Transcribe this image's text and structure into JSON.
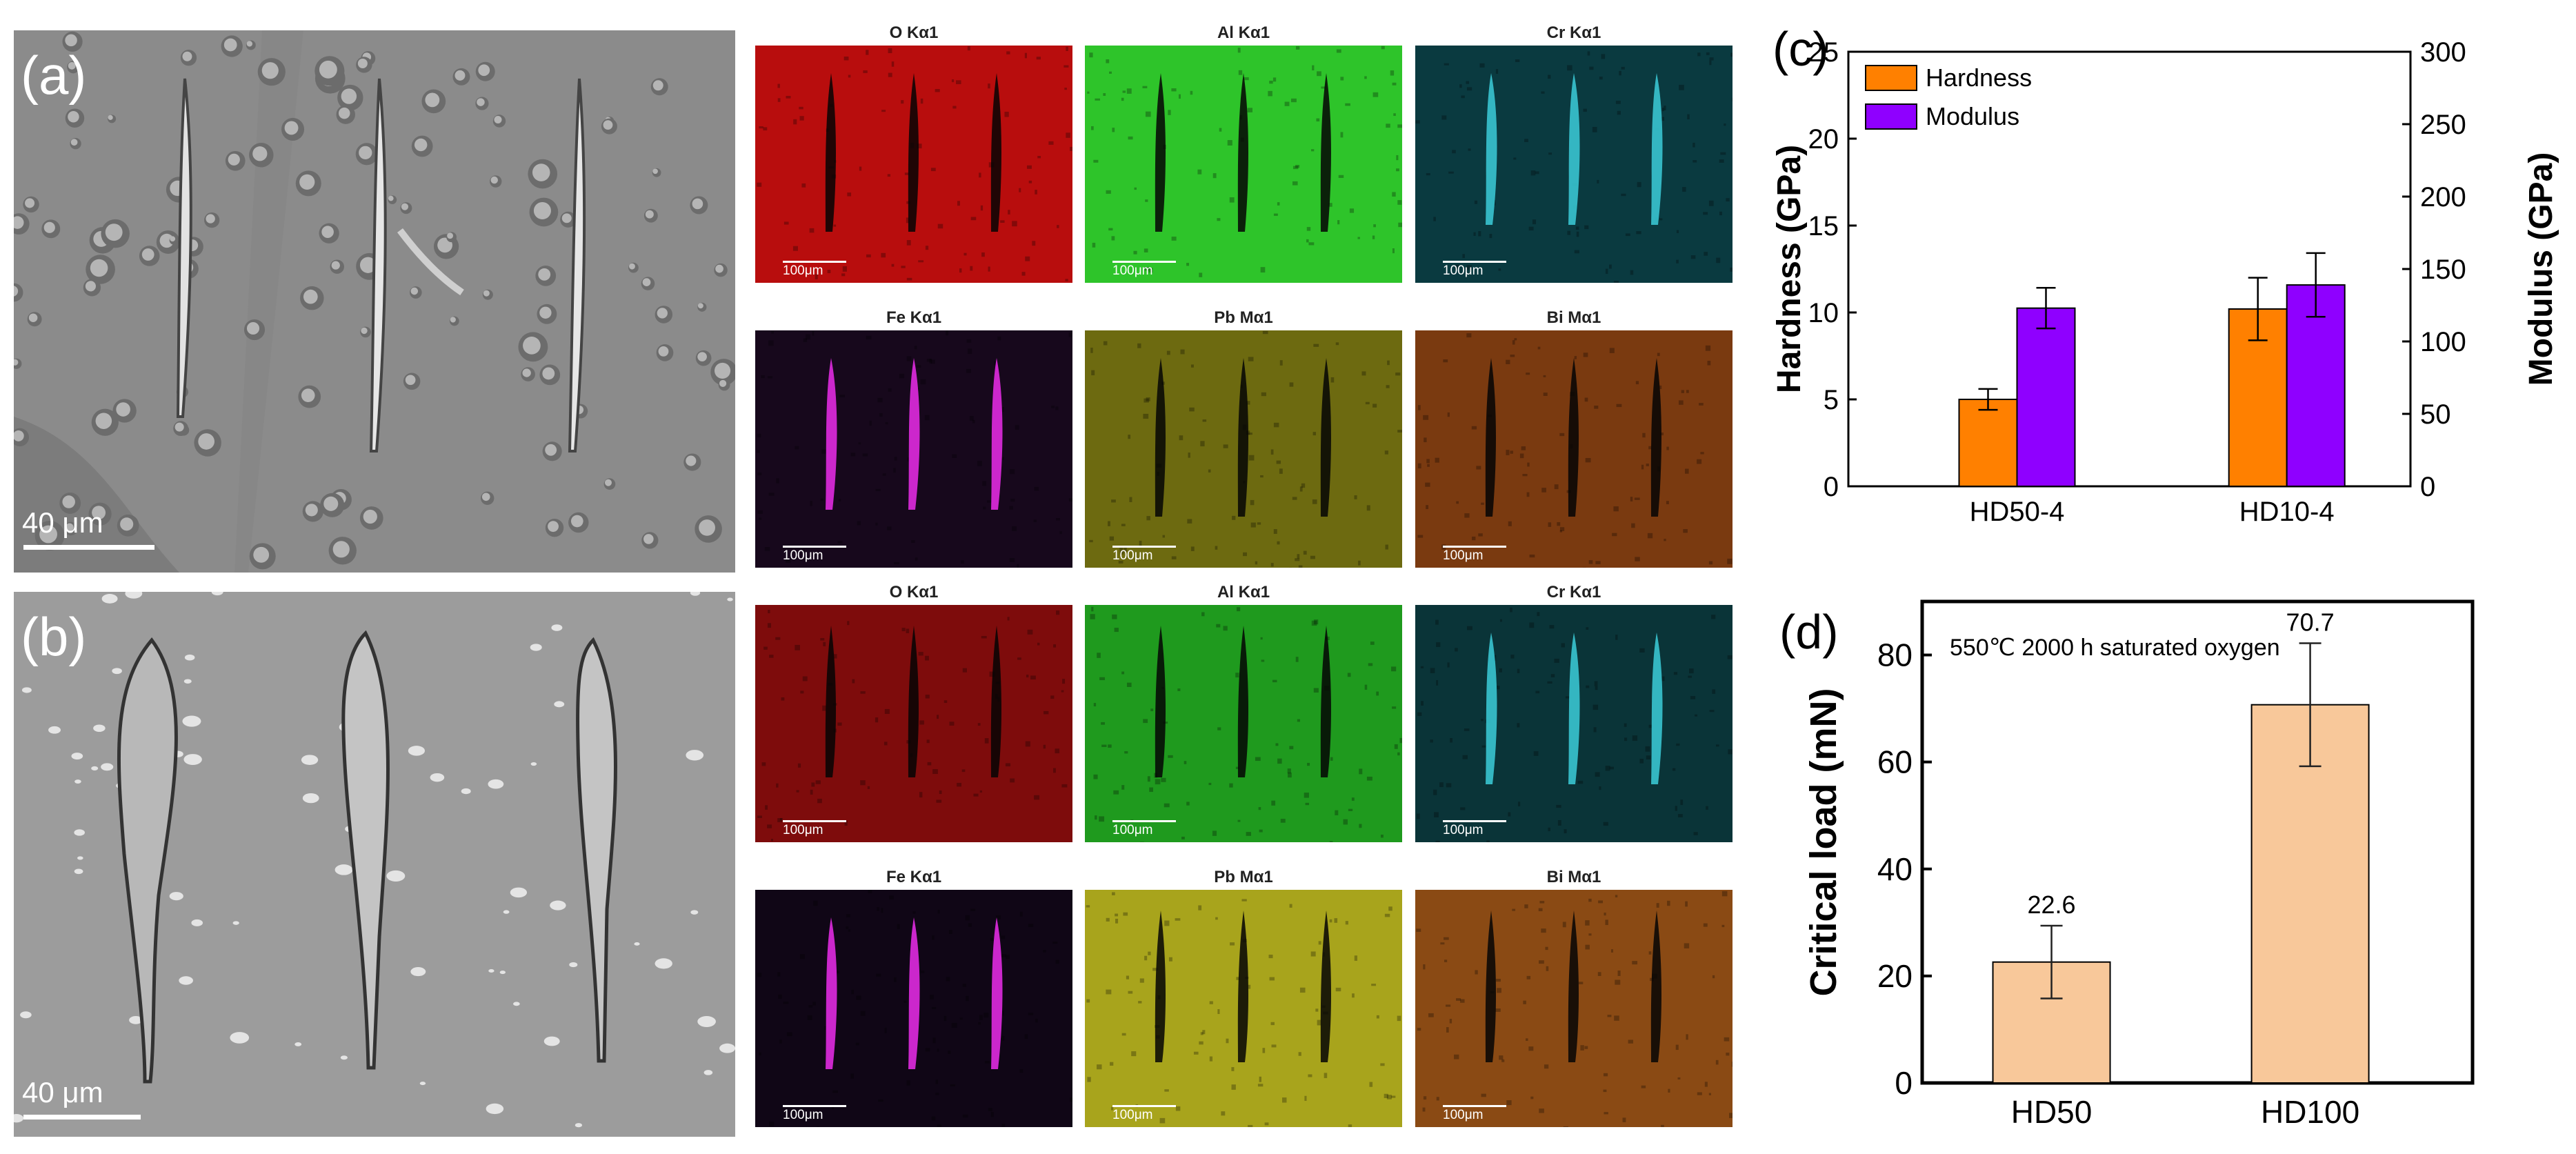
{
  "panel_a": {
    "label": "(a)",
    "scale_bar": "40 μm",
    "maps": [
      {
        "element": "O Kα1",
        "color": "#b80d0d",
        "scale": "100μm"
      },
      {
        "element": "Al Kα1",
        "color": "#2ec42a",
        "scale": "100μm"
      },
      {
        "element": "Cr Kα1",
        "color": "#0a3a40",
        "scale": "100μm"
      },
      {
        "element": "Fe Kα1",
        "color": "#17081c",
        "scale": "100μm"
      },
      {
        "element": "Pb Mα1",
        "color": "#6d6a10",
        "scale": "100μm"
      },
      {
        "element": "Bi Mα1",
        "color": "#7a3a10",
        "scale": "100μm"
      }
    ]
  },
  "panel_b": {
    "label": "(b)",
    "scale_bar": "40 μm",
    "maps": [
      {
        "element": "O Kα1",
        "color": "#7e0c0c",
        "scale": "100μm"
      },
      {
        "element": "Al Kα1",
        "color": "#1f9a1e",
        "scale": "100μm"
      },
      {
        "element": "Cr Kα1",
        "color": "#0a3438",
        "scale": "100μm"
      },
      {
        "element": "Fe Kα1",
        "color": "#100616",
        "scale": "100μm"
      },
      {
        "element": "Pb Mα1",
        "color": "#a8a41c",
        "scale": "100μm"
      },
      {
        "element": "Bi Mα1",
        "color": "#8a4a14",
        "scale": "100μm"
      }
    ]
  },
  "chart_data": [
    {
      "panel": "(c)",
      "type": "bar",
      "categories": [
        "HD50-4",
        "HD10-4"
      ],
      "series": [
        {
          "name": "Hardness",
          "axis": "left",
          "color": "#ff8000",
          "values": [
            5.0,
            10.2
          ],
          "errors": [
            0.6,
            1.8
          ]
        },
        {
          "name": "Modulus",
          "axis": "right",
          "color": "#8f00ff",
          "values": [
            123,
            139
          ],
          "errors": [
            14,
            22
          ]
        }
      ],
      "ylabel": "Hardness (GPa)",
      "y2label": "Modulus (GPa)",
      "ylim": [
        0,
        25
      ],
      "y2lim": [
        0,
        300
      ],
      "yticks": [
        0,
        5,
        10,
        15,
        20,
        25
      ],
      "y2ticks": [
        0,
        50,
        100,
        150,
        200,
        250,
        300
      ],
      "legend": "top-left"
    },
    {
      "panel": "(d)",
      "type": "bar",
      "categories": [
        "HD50",
        "HD100"
      ],
      "series": [
        {
          "color": "#f8c89a",
          "values": [
            22.6,
            70.7
          ],
          "errors": [
            6.8,
            11.5
          ]
        }
      ],
      "value_labels": [
        "22.6",
        "70.7"
      ],
      "annotation": "550℃ 2000 h saturated oxygen",
      "ylabel": "Critical load (mN)",
      "ylim": [
        0,
        90
      ],
      "yticks": [
        0,
        20,
        40,
        60,
        80
      ]
    }
  ]
}
